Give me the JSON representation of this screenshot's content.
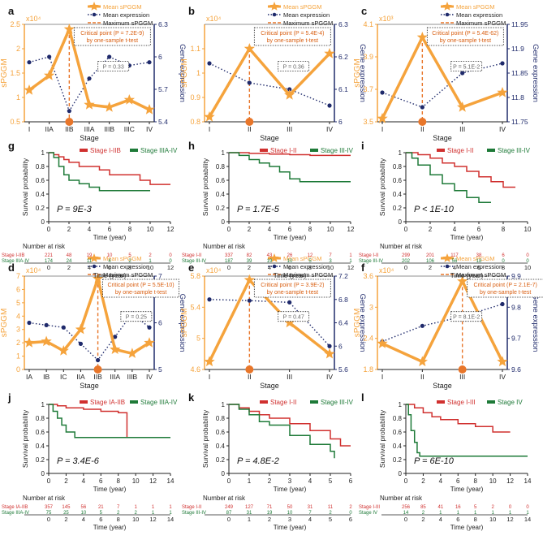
{
  "colors": {
    "orange": "#F5A33C",
    "orange_dark": "#E8762A",
    "navy": "#1F2A6B",
    "red": "#D0302F",
    "green": "#1E7A38",
    "crit_text": "#D95F12",
    "gray": "#666666"
  },
  "legend": {
    "mean_sppgm": "Mean sPGGM",
    "mean_expr": "Mean expression",
    "max_sppgm": "Maximum sPGGM"
  },
  "axis_labels": {
    "spggm": "sPGGM",
    "gene": "Gene expression",
    "stage": "Stage",
    "survival": "Survival probability",
    "time": "Time (year)",
    "risk": "Number at risk"
  },
  "chart_data": [
    {
      "type": "line",
      "letter": "a",
      "multiplier": "x10⁴",
      "stages": [
        "I",
        "IIA",
        "IIB",
        "IIIA",
        "IIIB",
        "IIIC",
        "IV"
      ],
      "spggm": [
        1.15,
        1.45,
        2.4,
        0.85,
        0.8,
        0.95,
        0.75
      ],
      "expr": [
        5.95,
        6.0,
        5.5,
        5.8,
        6.0,
        5.92,
        5.95
      ],
      "ylim": [
        0.5,
        2.5
      ],
      "yticks": [
        0.5,
        1,
        1.5,
        2,
        2.5
      ],
      "y2lim": [
        5.4,
        6.3
      ],
      "y2ticks": [
        5.4,
        5.7,
        6,
        6.3
      ],
      "crit_index": 2,
      "crit_text": [
        "Critical point (P = 7.2E-9)",
        "by one-sample t-test"
      ],
      "pbox": "P = 0.33"
    },
    {
      "type": "line",
      "letter": "b",
      "multiplier": "x10⁴",
      "stages": [
        "I",
        "II",
        "III",
        "IV"
      ],
      "spggm": [
        0.82,
        1.1,
        0.91,
        1.08
      ],
      "expr": [
        6.18,
        6.12,
        6.1,
        6.05
      ],
      "ylim": [
        0.8,
        1.2
      ],
      "yticks": [
        0.8,
        0.9,
        1,
        1.1
      ],
      "y2lim": [
        6.0,
        6.3
      ],
      "y2ticks": [
        6,
        6.1,
        6.2,
        6.3
      ],
      "crit_index": 1,
      "crit_text": [
        "Critical point (P = 5.4E-4)",
        "by one-sample t-test"
      ],
      "pbox": "P = 0.36"
    },
    {
      "type": "line",
      "letter": "c",
      "multiplier": "x10³",
      "stages": [
        "I",
        "II",
        "III",
        "IV"
      ],
      "spggm": [
        3.52,
        4.02,
        3.59,
        3.68
      ],
      "expr": [
        11.81,
        11.78,
        11.85,
        11.87
      ],
      "ylim": [
        3.5,
        4.1
      ],
      "yticks": [
        3.5,
        3.7,
        3.9,
        4.1
      ],
      "y2lim": [
        11.75,
        11.95
      ],
      "y2ticks": [
        11.75,
        11.8,
        11.85,
        11.9,
        11.95
      ],
      "crit_index": 1,
      "crit_text": [
        "Critical point (P = 5.4E-62)",
        "by one-sample t-test"
      ],
      "pbox": "P = 5.1E-2"
    },
    {
      "type": "line",
      "letter": "d",
      "multiplier": "x10⁴",
      "stages": [
        "IA",
        "IB",
        "IC",
        "IIA",
        "IIB",
        "IIIA",
        "IIIB",
        "IV"
      ],
      "spggm": [
        2.0,
        2.1,
        1.4,
        3.0,
        6.8,
        1.5,
        1.2,
        2.0
      ],
      "expr": [
        6.0,
        5.95,
        5.9,
        5.55,
        5.2,
        5.7,
        6.2,
        5.9
      ],
      "ylim": [
        0,
        7
      ],
      "yticks": [
        0,
        1,
        2,
        3,
        4,
        5,
        6,
        7
      ],
      "y2lim": [
        5,
        7
      ],
      "y2ticks": [
        5,
        6,
        7
      ],
      "crit_index": 4,
      "crit_text": [
        "Critical point (P = 5.5E-10)",
        "by one-sample t-test"
      ],
      "pbox": "P = 0.25"
    },
    {
      "type": "line",
      "letter": "e",
      "multiplier": "x10⁴",
      "stages": [
        "I",
        "II",
        "III",
        "IV"
      ],
      "spggm": [
        4.7,
        5.75,
        5.2,
        4.8
      ],
      "expr": [
        6.8,
        6.78,
        6.75,
        6.0
      ],
      "ylim": [
        4.6,
        5.8
      ],
      "yticks": [
        4.6,
        5,
        5.4,
        5.8
      ],
      "y2lim": [
        5.6,
        7.2
      ],
      "y2ticks": [
        5.6,
        6,
        6.4,
        6.8,
        7.2
      ],
      "crit_index": 1,
      "crit_text": [
        "Critical point (P = 3.9E-2)",
        "by one-sample t-test"
      ],
      "pbox": "P = 0.47"
    },
    {
      "type": "line",
      "letter": "f",
      "multiplier": "x10⁴",
      "stages": [
        "I",
        "II",
        "III",
        "IV"
      ],
      "spggm": [
        2.3,
        1.95,
        3.5,
        1.95
      ],
      "expr": [
        9.69,
        9.74,
        9.77,
        9.81
      ],
      "ylim": [
        1.8,
        3.6
      ],
      "yticks": [
        1.8,
        2.4,
        3,
        3.6
      ],
      "y2lim": [
        9.6,
        9.9
      ],
      "y2ticks": [
        9.6,
        9.7,
        9.8,
        9.9
      ],
      "crit_index": 2,
      "crit_text": [
        "Critical point (P = 2.1E-7)",
        "by one-sample t-test"
      ],
      "pbox": "P = 8.1E-2"
    },
    {
      "type": "survival",
      "letter": "g",
      "legend": [
        "Stage I-IIB",
        "Stage IIIA-IV"
      ],
      "pvalue": "P = 9E-3",
      "xlim": [
        0,
        12
      ],
      "xticks": [
        0,
        2,
        4,
        6,
        8,
        10,
        12
      ],
      "ylim": [
        0,
        1
      ],
      "yticks": [
        0,
        0.2,
        0.4,
        0.6,
        0.8,
        1
      ],
      "curves": [
        [
          [
            0,
            1
          ],
          [
            0.5,
            0.97
          ],
          [
            1,
            0.94
          ],
          [
            1.5,
            0.9
          ],
          [
            2,
            0.86
          ],
          [
            3,
            0.8
          ],
          [
            5,
            0.75
          ],
          [
            6,
            0.68
          ],
          [
            9,
            0.6
          ],
          [
            10,
            0.54
          ],
          [
            12,
            0.54
          ]
        ],
        [
          [
            0,
            1
          ],
          [
            0.5,
            0.93
          ],
          [
            1,
            0.8
          ],
          [
            1.5,
            0.68
          ],
          [
            2,
            0.6
          ],
          [
            3,
            0.55
          ],
          [
            4,
            0.5
          ],
          [
            5,
            0.45
          ],
          [
            10,
            0.45
          ]
        ]
      ],
      "risk_labels": [
        "Stage I-IIB",
        "Stage IIIA-IV"
      ],
      "risk_rows": [
        [
          "221",
          "48",
          "19",
          "10",
          "5",
          "2",
          "0"
        ],
        [
          "174",
          "24",
          "11",
          "4",
          "2",
          "1",
          "0"
        ]
      ]
    },
    {
      "type": "survival",
      "letter": "h",
      "legend": [
        "Stage I-II",
        "Stage III-IV"
      ],
      "pvalue": "P = 1.7E-5",
      "xlim": [
        0,
        12
      ],
      "xticks": [
        0,
        2,
        4,
        6,
        8,
        10,
        12
      ],
      "ylim": [
        0,
        1
      ],
      "yticks": [
        0,
        0.2,
        0.4,
        0.6,
        0.8,
        1
      ],
      "curves": [
        [
          [
            0,
            1
          ],
          [
            2,
            0.99
          ],
          [
            4,
            0.98
          ],
          [
            6,
            0.97
          ],
          [
            8,
            0.96
          ],
          [
            12,
            0.96
          ]
        ],
        [
          [
            0,
            1
          ],
          [
            1,
            0.96
          ],
          [
            2,
            0.9
          ],
          [
            3,
            0.85
          ],
          [
            4,
            0.8
          ],
          [
            5,
            0.72
          ],
          [
            6,
            0.62
          ],
          [
            7,
            0.58
          ],
          [
            12,
            0.58
          ]
        ]
      ],
      "risk_labels": [
        "Stage I-II",
        "Stage III-IV"
      ],
      "risk_rows": [
        [
          "337",
          "82",
          "43",
          "26",
          "12",
          "7",
          "1"
        ],
        [
          "187",
          "39",
          "19",
          "10",
          "5",
          "3",
          "1"
        ]
      ]
    },
    {
      "type": "survival",
      "letter": "i",
      "legend": [
        "Stage I-II",
        "Stage III-IV"
      ],
      "pvalue": "P < 1E-10",
      "xlim": [
        0,
        10
      ],
      "xticks": [
        0,
        2,
        4,
        6,
        8,
        10
      ],
      "ylim": [
        0,
        1
      ],
      "yticks": [
        0,
        0.2,
        0.4,
        0.6,
        0.8,
        1
      ],
      "curves": [
        [
          [
            0,
            1
          ],
          [
            1,
            0.97
          ],
          [
            2,
            0.92
          ],
          [
            3,
            0.85
          ],
          [
            4,
            0.8
          ],
          [
            5,
            0.73
          ],
          [
            6,
            0.65
          ],
          [
            7,
            0.58
          ],
          [
            8,
            0.5
          ],
          [
            9,
            0.5
          ]
        ],
        [
          [
            0,
            1
          ],
          [
            0.5,
            0.92
          ],
          [
            1,
            0.82
          ],
          [
            2,
            0.68
          ],
          [
            3,
            0.55
          ],
          [
            4,
            0.45
          ],
          [
            5,
            0.35
          ],
          [
            6,
            0.28
          ],
          [
            7,
            0.28
          ]
        ]
      ],
      "risk_labels": [
        "Stage I-II",
        "Stage III-IV"
      ],
      "risk_rows": [
        [
          "299",
          "201",
          "117",
          "38",
          "6",
          "0"
        ],
        [
          "202",
          "106",
          "56",
          "18",
          "0",
          "0"
        ]
      ]
    },
    {
      "type": "survival",
      "letter": "j",
      "legend": [
        "Stage IA-IIB",
        "Stage IIIA-IV"
      ],
      "pvalue": "P = 3.4E-6",
      "xlim": [
        0,
        14
      ],
      "xticks": [
        0,
        2,
        4,
        6,
        8,
        10,
        12,
        14
      ],
      "ylim": [
        0,
        1
      ],
      "yticks": [
        0,
        0.2,
        0.4,
        0.6,
        0.8,
        1
      ],
      "curves": [
        [
          [
            0,
            1
          ],
          [
            1,
            0.98
          ],
          [
            2,
            0.95
          ],
          [
            4,
            0.93
          ],
          [
            6,
            0.9
          ],
          [
            8,
            0.88
          ],
          [
            9,
            0.52
          ],
          [
            14,
            0.52
          ]
        ],
        [
          [
            0,
            1
          ],
          [
            0.5,
            0.9
          ],
          [
            1,
            0.8
          ],
          [
            1.5,
            0.7
          ],
          [
            2,
            0.6
          ],
          [
            3,
            0.52
          ],
          [
            14,
            0.52
          ]
        ]
      ],
      "risk_labels": [
        "Stage IA-IIB",
        "Stage IIIA-IV"
      ],
      "risk_rows": [
        [
          "357",
          "145",
          "56",
          "21",
          "7",
          "1",
          "1",
          "1"
        ],
        [
          "75",
          "25",
          "10",
          "5",
          "2",
          "2",
          "1",
          "1"
        ]
      ]
    },
    {
      "type": "survival",
      "letter": "k",
      "legend": [
        "Stage I-II",
        "Stage III-IV"
      ],
      "pvalue": "P = 4.8E-2",
      "xlim": [
        0,
        6
      ],
      "xticks": [
        0,
        1,
        2,
        3,
        4,
        5,
        6
      ],
      "ylim": [
        0,
        1
      ],
      "yticks": [
        0,
        0.2,
        0.4,
        0.6,
        0.8,
        1
      ],
      "curves": [
        [
          [
            0,
            1
          ],
          [
            0.5,
            0.95
          ],
          [
            1,
            0.9
          ],
          [
            1.5,
            0.85
          ],
          [
            2,
            0.8
          ],
          [
            3,
            0.72
          ],
          [
            4,
            0.62
          ],
          [
            5,
            0.5
          ],
          [
            5.5,
            0.4
          ],
          [
            6,
            0.4
          ]
        ],
        [
          [
            0,
            1
          ],
          [
            0.5,
            0.93
          ],
          [
            1,
            0.85
          ],
          [
            1.5,
            0.75
          ],
          [
            2,
            0.7
          ],
          [
            3,
            0.55
          ],
          [
            4,
            0.42
          ],
          [
            5,
            0.32
          ],
          [
            5.2,
            0.22
          ]
        ]
      ],
      "risk_labels": [
        "Stage I-II",
        "Stage III-IV"
      ],
      "risk_rows": [
        [
          "249",
          "127",
          "71",
          "50",
          "31",
          "11",
          "2"
        ],
        [
          "87",
          "31",
          "19",
          "10",
          "7",
          "2",
          "0"
        ]
      ]
    },
    {
      "type": "survival",
      "letter": "l",
      "legend": [
        "Stage I-III",
        "Stage IV"
      ],
      "pvalue": "P = 6E-10",
      "xlim": [
        0,
        14
      ],
      "xticks": [
        0,
        2,
        4,
        6,
        8,
        10,
        12,
        14
      ],
      "ylim": [
        0,
        1
      ],
      "yticks": [
        0,
        0.2,
        0.4,
        0.6,
        0.8,
        1
      ],
      "curves": [
        [
          [
            0,
            1
          ],
          [
            1,
            0.95
          ],
          [
            2,
            0.88
          ],
          [
            3,
            0.82
          ],
          [
            4,
            0.78
          ],
          [
            6,
            0.72
          ],
          [
            8,
            0.68
          ],
          [
            10,
            0.6
          ],
          [
            12,
            0.6
          ]
        ],
        [
          [
            0,
            1
          ],
          [
            0.3,
            0.85
          ],
          [
            0.6,
            0.62
          ],
          [
            1,
            0.45
          ],
          [
            1.3,
            0.3
          ],
          [
            1.6,
            0.25
          ],
          [
            14,
            0.25
          ]
        ]
      ],
      "risk_labels": [
        "Stage I-III",
        "Stage IV"
      ],
      "risk_rows": [
        [
          "256",
          "85",
          "41",
          "16",
          "5",
          "2",
          "0",
          "0"
        ],
        [
          "14",
          "2",
          "1",
          "1",
          "1",
          "1",
          "1",
          "1"
        ]
      ]
    }
  ]
}
